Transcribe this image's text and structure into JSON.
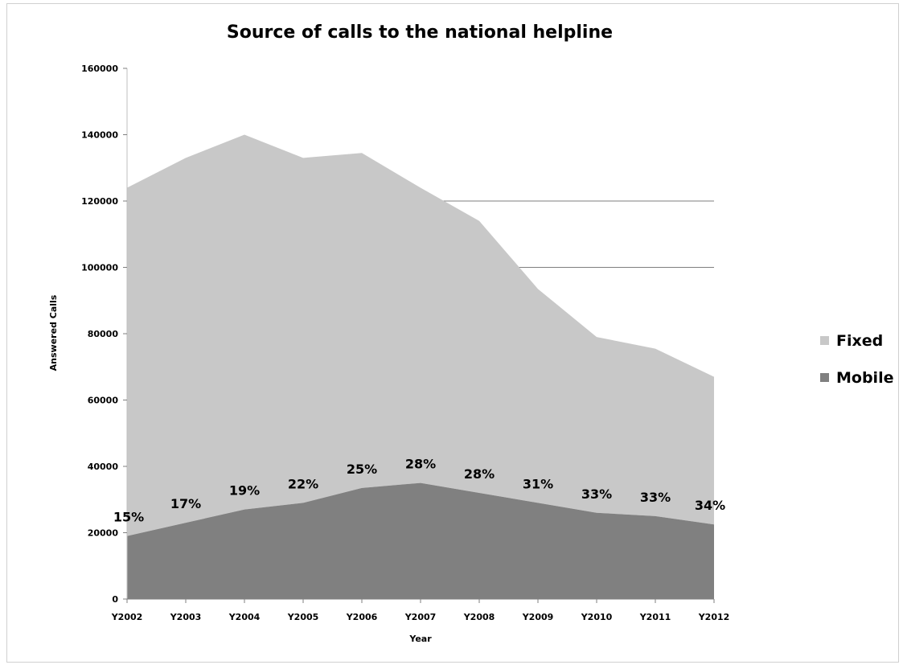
{
  "chart_data": {
    "type": "area",
    "stacked": true,
    "title": "Source of calls to the national helpline",
    "xlabel": "Year",
    "ylabel": "Answered Calls",
    "ylim": [
      0,
      160000
    ],
    "yticks": [
      0,
      20000,
      40000,
      60000,
      80000,
      100000,
      120000,
      140000,
      160000
    ],
    "categories": [
      "Y2002",
      "Y2003",
      "Y2004",
      "Y2005",
      "Y2006",
      "Y2007",
      "Y2008",
      "Y2009",
      "Y2010",
      "Y2011",
      "Y2012"
    ],
    "series": [
      {
        "name": "Mobile",
        "color": "#808080",
        "values": [
          19000,
          23000,
          27000,
          29000,
          33500,
          35000,
          32000,
          29000,
          26000,
          25000,
          22500
        ],
        "data_labels": [
          "15%",
          "17%",
          "19%",
          "22%",
          "25%",
          "28%",
          "28%",
          "31%",
          "33%",
          "33%",
          "34%"
        ]
      },
      {
        "name": "Fixed",
        "color": "#c8c8c8",
        "values": [
          105000,
          110000,
          113000,
          104000,
          101000,
          89000,
          82000,
          64500,
          53000,
          50500,
          44500
        ]
      }
    ],
    "grid": "partial horizontal lines at 100000 and 120000",
    "legend_position": "right"
  }
}
